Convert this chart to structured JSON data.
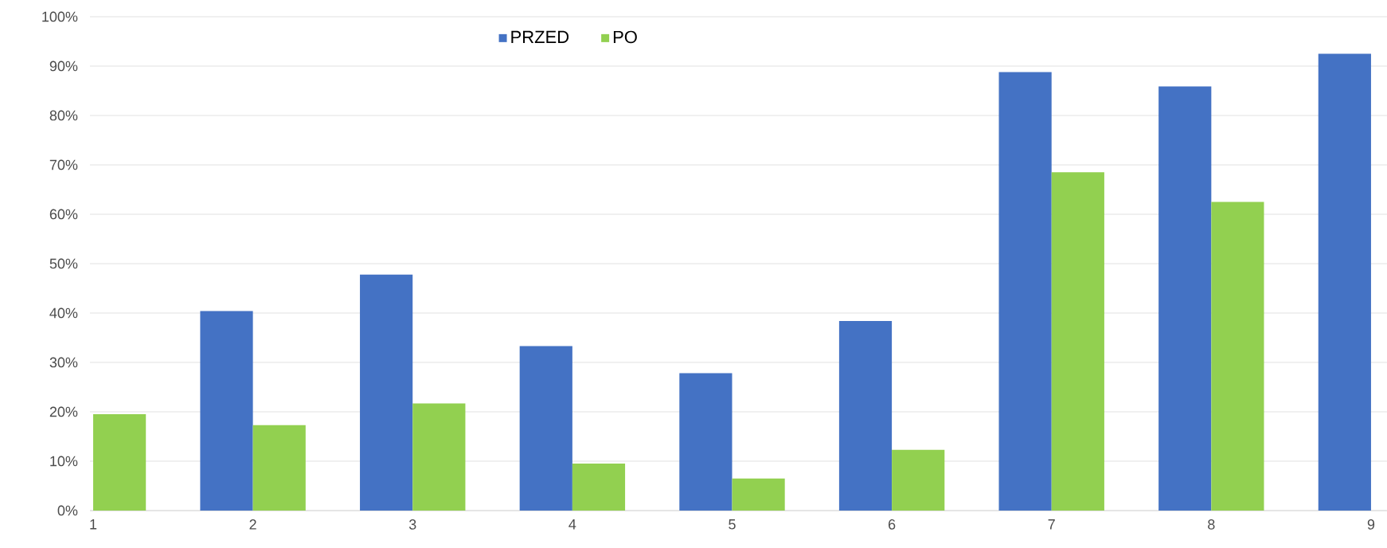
{
  "chart_data": {
    "type": "bar",
    "categories": [
      "1",
      "2",
      "3",
      "4",
      "5",
      "6",
      "7",
      "8",
      "9"
    ],
    "series": [
      {
        "name": "PRZED",
        "color": "#4472c4",
        "values": [
          null,
          40.4,
          47.8,
          33.3,
          27.8,
          38.4,
          88.8,
          85.9,
          92.5
        ]
      },
      {
        "name": "PO",
        "color": "#92d050",
        "values": [
          19.5,
          17.3,
          21.7,
          9.5,
          6.5,
          12.3,
          68.5,
          62.5,
          null
        ]
      }
    ],
    "ylim": [
      0,
      100
    ],
    "yticks": [
      {
        "value": 0,
        "label": "0%"
      },
      {
        "value": 10,
        "label": "10%"
      },
      {
        "value": 20,
        "label": "20%"
      },
      {
        "value": 30,
        "label": "30%"
      },
      {
        "value": 40,
        "label": "40%"
      },
      {
        "value": 50,
        "label": "50%"
      },
      {
        "value": 60,
        "label": "60%"
      },
      {
        "value": 70,
        "label": "70%"
      },
      {
        "value": 80,
        "label": "80%"
      },
      {
        "value": 90,
        "label": "90%"
      },
      {
        "value": 100,
        "label": "100%"
      }
    ],
    "grid": "y",
    "legend": "top"
  }
}
